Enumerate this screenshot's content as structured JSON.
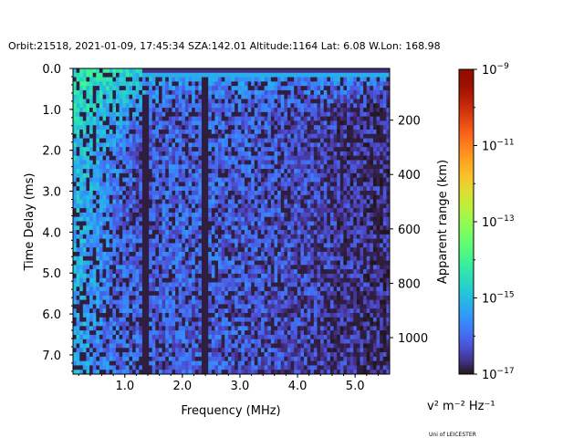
{
  "chart_data": {
    "type": "heatmap",
    "title": "Orbit:21518, 2021-01-09, 17:45:34 SZA:142.01 Altitude:1164 Lat: 6.08 W.Lon: 168.98",
    "xlabel": "Frequency (MHz)",
    "ylabel": "Time Delay (ms)",
    "y2label": "Apparent range (km)",
    "xlim": [
      0.1,
      5.6
    ],
    "ylim": [
      7.47,
      0.0
    ],
    "y2lim": [
      1134,
      10
    ],
    "x_ticks": [
      1.0,
      2.0,
      3.0,
      4.0,
      5.0
    ],
    "x_tick_labels": [
      "1.0",
      "2.0",
      "3.0",
      "4.0",
      "5.0"
    ],
    "y_ticks": [
      0,
      1,
      2,
      3,
      4,
      5,
      6,
      7
    ],
    "y_tick_labels": [
      "0.0",
      "1.0",
      "2.0",
      "3.0",
      "4.0",
      "5.0",
      "6.0",
      "7.0"
    ],
    "y2_ticks": [
      200,
      400,
      600,
      800,
      1000
    ],
    "y2_tick_labels": [
      "200",
      "400",
      "600",
      "800",
      "1000"
    ],
    "colorbar": {
      "scale": "log",
      "range": [
        1e-17,
        1e-09
      ],
      "colormap": "turbo",
      "tick_base": "10",
      "tick_exponents": [
        "−9",
        "−11",
        "−13",
        "−15",
        "−17"
      ],
      "tick_values_log10": [
        -9,
        -11,
        -13,
        -15,
        -17
      ],
      "unit_label": "v² m⁻² Hz⁻¹"
    },
    "coarse_grid_log10": {
      "freq_MHz": [
        0.25,
        0.75,
        1.25,
        1.75,
        2.25,
        2.75,
        3.25,
        3.75,
        4.25,
        4.75,
        5.25
      ],
      "delay_ms": [
        0.15,
        1.0,
        2.0,
        3.0,
        4.0,
        5.0,
        6.0,
        7.0
      ],
      "values": [
        [
          -14.3,
          -14.5,
          -14.9,
          -15.4,
          -15.5,
          -15.5,
          -15.5,
          -15.5,
          -15.6,
          -15.6,
          -15.6
        ],
        [
          -14.7,
          -15.1,
          -15.6,
          -16.2,
          -16.0,
          -16.0,
          -16.1,
          -16.2,
          -16.3,
          -16.5,
          -16.6
        ],
        [
          -15.0,
          -15.5,
          -16.3,
          -16.0,
          -16.0,
          -16.0,
          -16.1,
          -16.2,
          -16.3,
          -16.5,
          -16.6
        ],
        [
          -15.1,
          -15.7,
          -16.3,
          -16.0,
          -16.0,
          -16.1,
          -16.1,
          -16.2,
          -16.3,
          -16.5,
          -16.6
        ],
        [
          -15.2,
          -15.8,
          -16.2,
          -16.0,
          -16.0,
          -16.1,
          -16.2,
          -16.2,
          -16.3,
          -16.5,
          -16.6
        ],
        [
          -15.3,
          -15.9,
          -16.1,
          -16.0,
          -16.1,
          -16.1,
          -16.2,
          -16.2,
          -16.3,
          -16.5,
          -16.6
        ],
        [
          -15.3,
          -15.9,
          -16.1,
          -16.0,
          -16.1,
          -16.1,
          -16.2,
          -16.3,
          -16.4,
          -16.5,
          -16.6
        ],
        [
          -15.3,
          -15.9,
          -16.1,
          -16.0,
          -16.1,
          -16.1,
          -16.2,
          -16.3,
          -16.4,
          -16.5,
          -16.6
        ]
      ]
    }
  },
  "footer": {
    "credit": "Uni of LEICESTER"
  }
}
